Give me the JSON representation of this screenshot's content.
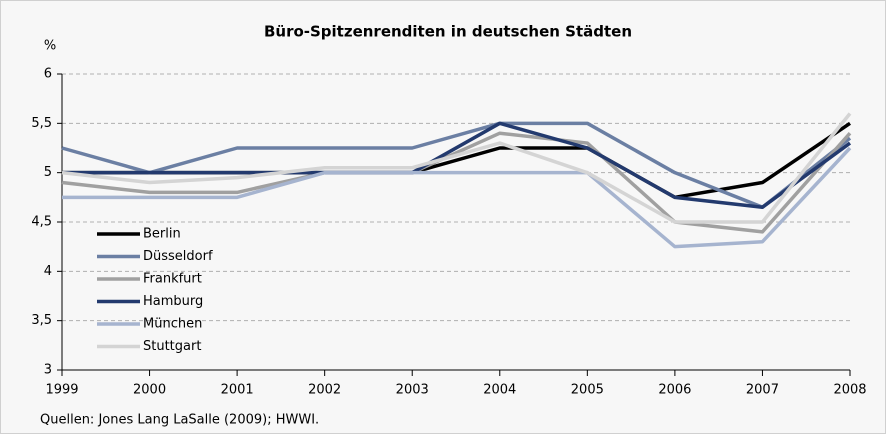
{
  "chart_data": {
    "type": "line",
    "title": "Büro-Spitzenrenditen in deutschen Städten",
    "y_label": "%",
    "source": "Quellen: Jones Lang LaSalle (2009); HWWI.",
    "x": [
      1999,
      2000,
      2001,
      2002,
      2003,
      2004,
      2005,
      2006,
      2007,
      2008
    ],
    "xlim": [
      1999,
      2008
    ],
    "xticks": [
      1999,
      2000,
      2001,
      2002,
      2003,
      2004,
      2005,
      2006,
      2007,
      2008
    ],
    "ylim": [
      3,
      6
    ],
    "yticks": [
      3,
      {
        "value": 3.5,
        "label": "3,5"
      },
      4,
      {
        "value": 4.5,
        "label": "4,5"
      },
      5,
      {
        "value": 5.5,
        "label": "5,5"
      },
      6
    ],
    "grid": true,
    "legend": "left",
    "series": [
      {
        "name": "Berlin",
        "color": "#000000",
        "values": [
          5.0,
          5.0,
          5.0,
          5.0,
          5.0,
          5.25,
          5.25,
          4.75,
          4.9,
          5.5
        ]
      },
      {
        "name": "Düsseldorf",
        "color": "#6b7fa3",
        "values": [
          5.25,
          5.0,
          5.25,
          5.25,
          5.25,
          5.5,
          5.5,
          5.0,
          4.65,
          5.35
        ]
      },
      {
        "name": "Frankfurt",
        "color": "#a0a0a0",
        "values": [
          4.9,
          4.8,
          4.8,
          5.0,
          5.0,
          5.4,
          5.3,
          4.5,
          4.4,
          5.4
        ]
      },
      {
        "name": "Hamburg",
        "color": "#233a6e",
        "values": [
          5.0,
          5.0,
          5.0,
          5.0,
          5.0,
          5.5,
          5.25,
          4.75,
          4.65,
          5.3
        ]
      },
      {
        "name": "München",
        "color": "#a6b4cf",
        "values": [
          4.75,
          4.75,
          4.75,
          5.0,
          5.0,
          5.0,
          5.0,
          4.25,
          4.3,
          5.25
        ]
      },
      {
        "name": "Stuttgart",
        "color": "#d4d4d4",
        "values": [
          5.0,
          4.9,
          4.95,
          5.05,
          5.05,
          5.3,
          5.0,
          4.5,
          4.5,
          5.6
        ]
      }
    ]
  }
}
